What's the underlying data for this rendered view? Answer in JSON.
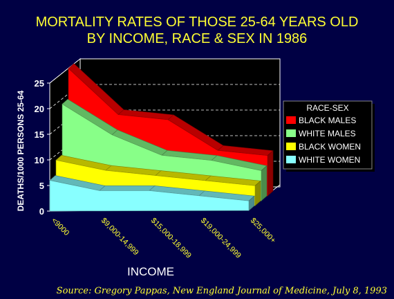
{
  "title_line1": "MORTALITY RATES OF THOSE 25-64 YEARS OLD",
  "title_line2": "BY INCOME, RACE & SEX IN 1986",
  "source": "Source: Gregory Pappas, New England Journal of Medicine, July 8, 1993",
  "colors": {
    "background": "#000044",
    "title": "#ffff33",
    "black_males": "#ff0000",
    "white_males": "#88ff88",
    "black_women": "#ffff00",
    "white_women": "#88ffff"
  },
  "chart_data": {
    "type": "area",
    "title": "MORTALITY RATES OF THOSE 25-64 YEARS OLD BY INCOME, RACE & SEX IN 1986",
    "xlabel": "INCOME",
    "ylabel": "DEATHS/1000 PERSONS 25-64",
    "ylim": [
      0,
      25
    ],
    "yticks": [
      "0",
      "5",
      "10",
      "15",
      "20",
      "25"
    ],
    "categories": [
      "<9000",
      "$9,000-14,999",
      "$15,000-18,999",
      "$19,000-24,999",
      "$25,000+"
    ],
    "legend_title": "RACE-SEX",
    "legend_position": "right",
    "grid": true,
    "series": [
      {
        "name": "BLACK MALES",
        "values": [
          25,
          16,
          15,
          9,
          8
        ],
        "color": "#ff0000"
      },
      {
        "name": "WHITE MALES",
        "values": [
          19,
          13,
          9,
          8,
          6
        ],
        "color": "#88ff88"
      },
      {
        "name": "BLACK WOMEN",
        "values": [
          9,
          7,
          6,
          5,
          4
        ],
        "color": "#ffff00"
      },
      {
        "name": "WHITE WOMEN",
        "values": [
          6,
          4,
          4,
          3,
          2
        ],
        "color": "#88ffff"
      }
    ]
  }
}
